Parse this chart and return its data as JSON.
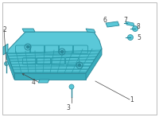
{
  "bg_color": "#ffffff",
  "border_color": "#b0b0b0",
  "battery_fill": "#5ac8d8",
  "battery_dark": "#3aacbc",
  "battery_outline": "#2a8899",
  "side_fill": "#3ab8cc",
  "groove_color": "#2a9aaa",
  "label_color": "#444444",
  "fig_width": 2.0,
  "fig_height": 1.47,
  "dpi": 100,
  "border_lw": 0.6
}
